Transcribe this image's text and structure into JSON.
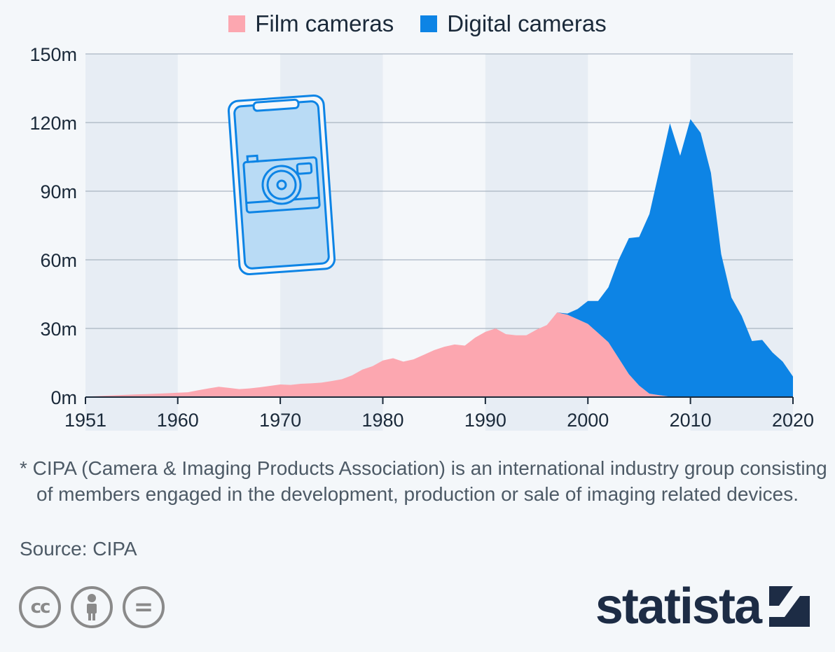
{
  "legend": [
    {
      "label": "Film cameras",
      "color": "#fca7b0"
    },
    {
      "label": "Digital cameras",
      "color": "#0d84e5"
    }
  ],
  "chart_data": {
    "type": "area",
    "stacked": true,
    "x": [
      1951,
      1952,
      1953,
      1954,
      1955,
      1956,
      1957,
      1958,
      1959,
      1960,
      1961,
      1962,
      1963,
      1964,
      1965,
      1966,
      1967,
      1968,
      1969,
      1970,
      1971,
      1972,
      1973,
      1974,
      1975,
      1976,
      1977,
      1978,
      1979,
      1980,
      1981,
      1982,
      1983,
      1984,
      1985,
      1986,
      1987,
      1988,
      1989,
      1990,
      1991,
      1992,
      1993,
      1994,
      1995,
      1996,
      1997,
      1998,
      1999,
      2000,
      2001,
      2002,
      2003,
      2004,
      2005,
      2006,
      2007,
      2008,
      2009,
      2010,
      2011,
      2012,
      2013,
      2014,
      2015,
      2016,
      2017,
      2018,
      2019,
      2020
    ],
    "series": [
      {
        "name": "Film cameras",
        "color": "#fca7b0",
        "values": [
          0.2,
          0.4,
          0.6,
          0.8,
          1.0,
          1.2,
          1.3,
          1.5,
          1.7,
          1.9,
          2.1,
          3.0,
          3.8,
          4.5,
          4.0,
          3.5,
          3.8,
          4.3,
          4.9,
          5.5,
          5.3,
          5.8,
          6.0,
          6.3,
          7.0,
          7.8,
          9.5,
          12.0,
          13.5,
          16.0,
          17.0,
          15.5,
          16.5,
          18.5,
          20.5,
          22.0,
          23.0,
          22.5,
          26.0,
          28.5,
          30.0,
          27.5,
          27.0,
          27.0,
          29.5,
          31.5,
          37.0,
          36.0,
          34.0,
          32.0,
          28.0,
          24.0,
          17.0,
          10.0,
          5.0,
          1.5,
          0.8,
          0.2,
          0,
          0,
          0,
          0,
          0,
          0,
          0,
          0,
          0,
          0,
          0,
          0
        ]
      },
      {
        "name": "Digital cameras",
        "color": "#0d84e5",
        "values": [
          0,
          0,
          0,
          0,
          0,
          0,
          0,
          0,
          0,
          0,
          0,
          0,
          0,
          0,
          0,
          0,
          0,
          0,
          0,
          0,
          0,
          0,
          0,
          0,
          0,
          0,
          0,
          0,
          0,
          0,
          0,
          0,
          0,
          0,
          0,
          0,
          0,
          0,
          0,
          0,
          0,
          0,
          0,
          0,
          0,
          0,
          0,
          0.5,
          4.5,
          10.0,
          14.0,
          24.0,
          43.0,
          59.5,
          65.0,
          78.5,
          99.0,
          119.5,
          105.5,
          121.5,
          115.5,
          98.0,
          62.5,
          43.5,
          35.5,
          24.5,
          25.0,
          19.5,
          15.5,
          9.0
        ]
      }
    ],
    "xticks": [
      "1951",
      "1960",
      "1970",
      "1980",
      "1990",
      "2000",
      "2010",
      "2020"
    ],
    "yticks": [
      "0m",
      "30m",
      "60m",
      "90m",
      "120m",
      "150m"
    ],
    "ylim": [
      0,
      150
    ],
    "xlim": [
      1951,
      2020
    ],
    "legend_position": "top-center",
    "grid": true
  },
  "footnote": "* CIPA (Camera & Imaging Products Association) is an international industry group consisting of members engaged in the development, production or sale of imaging related devices.",
  "source": "Source: CIPA",
  "brand": {
    "name": "statista",
    "color": "#1d2c45"
  },
  "licenses": [
    "cc-icon",
    "by-icon",
    "nd-icon"
  ],
  "decor": {
    "illustration": "smartphone-camera-icon"
  }
}
